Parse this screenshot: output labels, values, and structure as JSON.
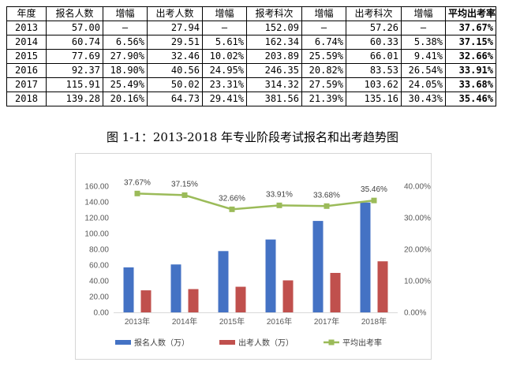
{
  "table": {
    "headers": [
      "年度",
      "报名人数",
      "增幅",
      "出考人数",
      "增幅",
      "报考科次",
      "增幅",
      "出考科次",
      "增幅",
      "平均出考率"
    ],
    "rows": [
      [
        "2013",
        "57.00",
        "—",
        "27.94",
        "—",
        "152.09",
        "—",
        "57.26",
        "—",
        "37.67%"
      ],
      [
        "2014",
        "60.74",
        "6.56%",
        "29.51",
        "5.61%",
        "162.34",
        "6.74%",
        "60.33",
        "5.38%",
        "37.15%"
      ],
      [
        "2015",
        "77.69",
        "27.90%",
        "32.46",
        "10.02%",
        "203.89",
        "25.59%",
        "66.01",
        "9.41%",
        "32.66%"
      ],
      [
        "2016",
        "92.37",
        "18.90%",
        "40.56",
        "24.95%",
        "246.35",
        "20.82%",
        "83.53",
        "26.54%",
        "33.91%"
      ],
      [
        "2017",
        "115.91",
        "25.49%",
        "50.02",
        "23.31%",
        "314.32",
        "27.59%",
        "103.62",
        "24.05%",
        "33.68%"
      ],
      [
        "2018",
        "139.28",
        "20.16%",
        "64.73",
        "29.41%",
        "381.56",
        "21.39%",
        "135.16",
        "30.43%",
        "35.46%"
      ]
    ]
  },
  "caption": "图 1-1：2013-2018 年专业阶段考试报名和出考趋势图",
  "chart_data": {
    "type": "bar",
    "categories": [
      "2013年",
      "2014年",
      "2015年",
      "2016年",
      "2017年",
      "2018年"
    ],
    "series": [
      {
        "name": "报名人数（万）",
        "kind": "bar",
        "axis": "left",
        "color": "#4472c4",
        "values": [
          57.0,
          60.74,
          77.69,
          92.37,
          115.91,
          139.28
        ]
      },
      {
        "name": "出考人数（万）",
        "kind": "bar",
        "axis": "left",
        "color": "#c0504d",
        "values": [
          27.94,
          29.51,
          32.46,
          40.56,
          50.02,
          64.73
        ]
      },
      {
        "name": "平均出考率",
        "kind": "line",
        "axis": "right",
        "color": "#9bbb59",
        "values": [
          37.67,
          37.15,
          32.66,
          33.91,
          33.68,
          35.46
        ],
        "labels": [
          "37.67%",
          "37.15%",
          "32.66%",
          "33.91%",
          "33.68%",
          "35.46%"
        ]
      }
    ],
    "y_left": {
      "min": 0,
      "max": 160,
      "step": 20,
      "tick_labels": [
        "0.00",
        "20.00",
        "40.00",
        "60.00",
        "80.00",
        "100.00",
        "120.00",
        "140.00",
        "160.00"
      ]
    },
    "y_right": {
      "min": 0,
      "max": 40,
      "step": 10,
      "tick_labels": [
        "0.00%",
        "10.00%",
        "20.00%",
        "30.00%",
        "40.00%"
      ]
    },
    "grid": false,
    "legend_position": "bottom",
    "title": "",
    "xlabel": "",
    "ylabel": ""
  }
}
